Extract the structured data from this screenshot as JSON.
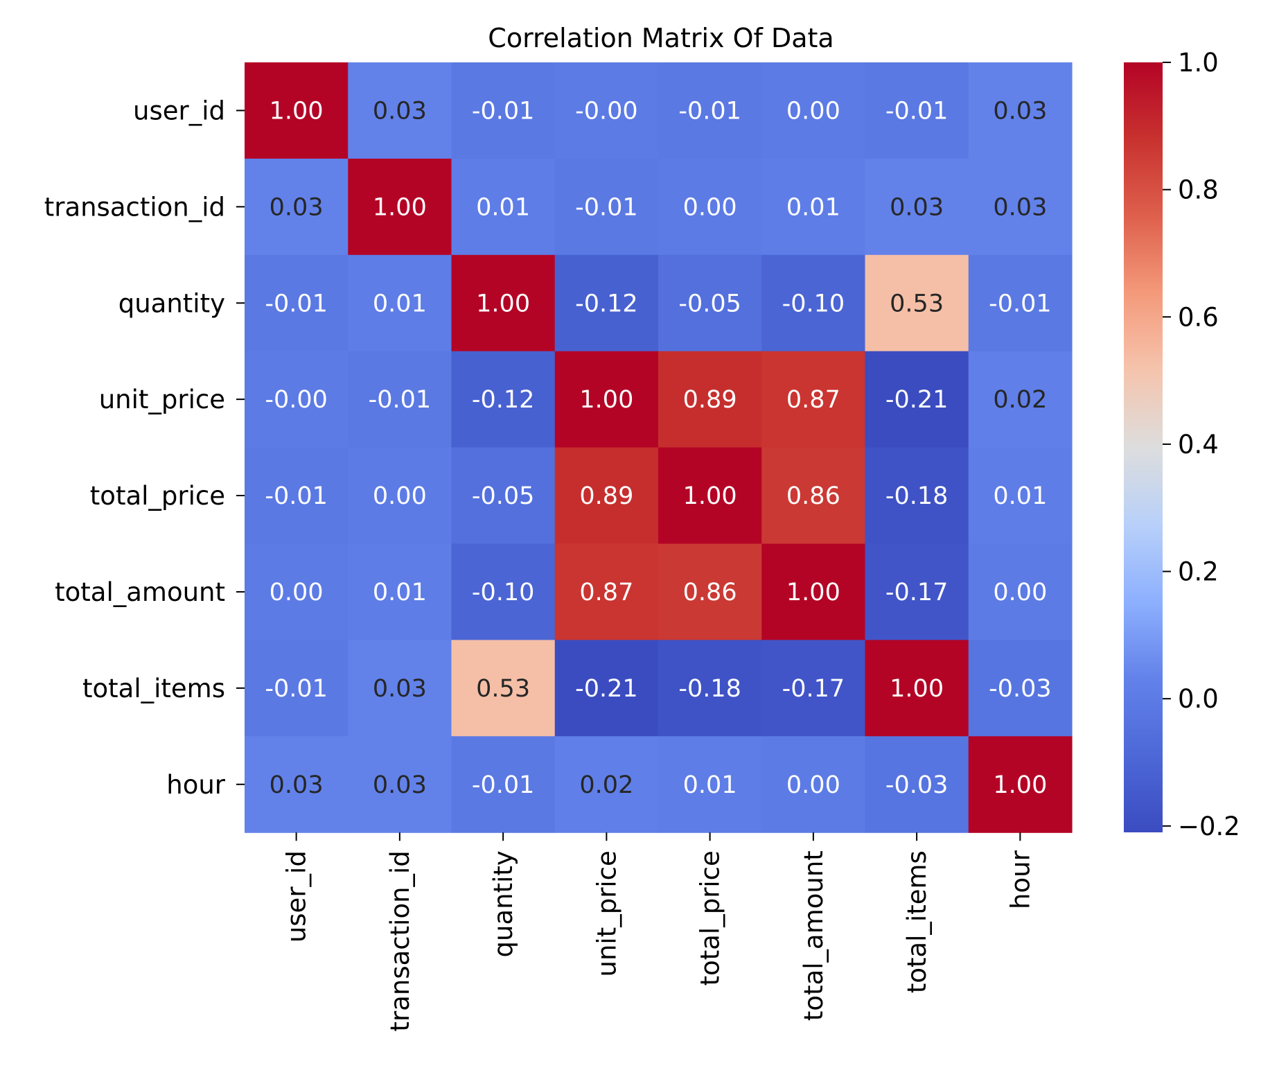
{
  "chart_data": {
    "type": "heatmap",
    "title": "Correlation Matrix Of Data",
    "xlabel": "",
    "ylabel": "",
    "labels": [
      "user_id",
      "transaction_id",
      "quantity",
      "unit_price",
      "total_price",
      "total_amount",
      "total_items",
      "hour"
    ],
    "values": [
      [
        1.0,
        0.03,
        -0.01,
        -0.0,
        -0.01,
        0.0,
        -0.01,
        0.03
      ],
      [
        0.03,
        1.0,
        0.01,
        -0.01,
        0.0,
        0.01,
        0.03,
        0.03
      ],
      [
        -0.01,
        0.01,
        1.0,
        -0.12,
        -0.05,
        -0.1,
        0.53,
        -0.01
      ],
      [
        -0.0,
        -0.01,
        -0.12,
        1.0,
        0.89,
        0.87,
        -0.21,
        0.02
      ],
      [
        -0.01,
        0.0,
        -0.05,
        0.89,
        1.0,
        0.86,
        -0.18,
        0.01
      ],
      [
        0.0,
        0.01,
        -0.1,
        0.87,
        0.86,
        1.0,
        -0.17,
        0.0
      ],
      [
        -0.01,
        0.03,
        0.53,
        -0.21,
        -0.18,
        -0.17,
        1.0,
        -0.03
      ],
      [
        0.03,
        0.03,
        -0.01,
        0.02,
        0.01,
        0.0,
        -0.03,
        1.0
      ]
    ],
    "annotations": [
      [
        "1.00",
        "0.03",
        "-0.01",
        "-0.00",
        "-0.01",
        "0.00",
        "-0.01",
        "0.03"
      ],
      [
        "0.03",
        "1.00",
        "0.01",
        "-0.01",
        "0.00",
        "0.01",
        "0.03",
        "0.03"
      ],
      [
        "-0.01",
        "0.01",
        "1.00",
        "-0.12",
        "-0.05",
        "-0.10",
        "0.53",
        "-0.01"
      ],
      [
        "-0.00",
        "-0.01",
        "-0.12",
        "1.00",
        "0.89",
        "0.87",
        "-0.21",
        "0.02"
      ],
      [
        "-0.01",
        "0.00",
        "-0.05",
        "0.89",
        "1.00",
        "0.86",
        "-0.18",
        "0.01"
      ],
      [
        "0.00",
        "0.01",
        "-0.10",
        "0.87",
        "0.86",
        "1.00",
        "-0.17",
        "0.00"
      ],
      [
        "-0.01",
        "0.03",
        "0.53",
        "-0.21",
        "-0.18",
        "-0.17",
        "1.00",
        "-0.03"
      ],
      [
        "0.03",
        "0.03",
        "-0.01",
        "0.02",
        "0.01",
        "0.00",
        "-0.03",
        "1.00"
      ]
    ],
    "colormap": "coolwarm",
    "vmin": -0.21,
    "vmax": 1.0,
    "colorbar": {
      "ticks": [
        1.0,
        0.8,
        0.6,
        0.4,
        0.2,
        0.0,
        -0.2
      ],
      "tick_labels": [
        "1.0",
        "0.8",
        "0.6",
        "0.4",
        "0.2",
        "0.0",
        "−0.2"
      ]
    },
    "grid": false,
    "legend": "none"
  }
}
